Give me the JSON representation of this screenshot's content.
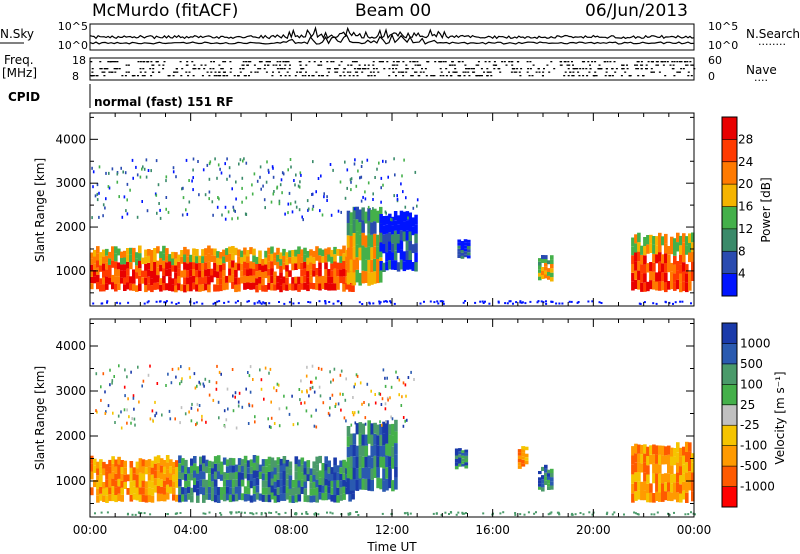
{
  "header": {
    "station": "McMurdo (fitACF)",
    "beam": "Beam 00",
    "date": "06/Jun/2013"
  },
  "noise_panel": {
    "left_label": "N.Sky",
    "right_label": "N.Search",
    "right_dots": "········",
    "left_top_tick": "10^5",
    "left_bottom_tick": "10^0",
    "right_top_tick": "10^5",
    "right_bottom_tick": "10^0"
  },
  "freq_panel": {
    "left_label_line1": "Freq.",
    "left_label_line2": "[MHz]",
    "right_label": "Nave",
    "right_dots": "····",
    "left_ticks": [
      "18",
      "8"
    ],
    "right_ticks": [
      "60",
      "0"
    ]
  },
  "cpid": {
    "label": "CPID",
    "text": "normal (fast) 151 RF"
  },
  "colors": {
    "power_scale": [
      "#0014ff",
      "#2a4bb0",
      "#3a8a6a",
      "#44b04a",
      "#f5b400",
      "#ff7a00",
      "#ff3a00",
      "#e80000"
    ],
    "velocity_scale": [
      "#ff0000",
      "#ff5a00",
      "#ff9a00",
      "#f5c400",
      "#c0c0c0",
      "#44b04a",
      "#4a9a6a",
      "#2a5ab0",
      "#1a3aaa"
    ]
  },
  "chart_data": [
    {
      "type": "heatmap",
      "name": "power",
      "ylabel": "Slant Range [km]",
      "xlabel": "",
      "x_ticks": [
        "00:00",
        "04:00",
        "08:00",
        "12:00",
        "16:00",
        "20:00",
        "00:00"
      ],
      "y_ticks": [
        "1000",
        "2000",
        "3000",
        "4000"
      ],
      "ylim": [
        200,
        4600
      ],
      "xlim_hours": [
        0,
        24
      ],
      "colorbar": {
        "label": "Power [dB]",
        "ticks": [
          "4",
          "8",
          "12",
          "16",
          "20",
          "24",
          "28"
        ]
      },
      "regions": [
        {
          "t0": 0.0,
          "t1": 10.5,
          "r0": 550,
          "r1": 1500,
          "level": "high"
        },
        {
          "t0": 10.2,
          "t1": 11.6,
          "r0": 700,
          "r1": 2400,
          "level": "mid"
        },
        {
          "t0": 11.5,
          "t1": 13.0,
          "r0": 1000,
          "r1": 2300,
          "level": "low"
        },
        {
          "t0": 14.6,
          "t1": 15.1,
          "r0": 1300,
          "r1": 1700,
          "level": "low"
        },
        {
          "t0": 17.8,
          "t1": 18.4,
          "r0": 800,
          "r1": 1300,
          "level": "mid"
        },
        {
          "t0": 21.5,
          "t1": 24.0,
          "r0": 550,
          "r1": 1800,
          "level": "high"
        }
      ]
    },
    {
      "type": "heatmap",
      "name": "velocity",
      "ylabel": "Slant Range [km]",
      "xlabel": "Time UT",
      "x_ticks": [
        "00:00",
        "04:00",
        "08:00",
        "12:00",
        "16:00",
        "20:00",
        "00:00"
      ],
      "y_ticks": [
        "1000",
        "2000",
        "3000",
        "4000"
      ],
      "ylim": [
        200,
        4600
      ],
      "xlim_hours": [
        0,
        24
      ],
      "colorbar": {
        "label": "Velocity [m s⁻¹]",
        "ticks": [
          "1000",
          "500",
          "100",
          "25",
          "-25",
          "-100",
          "-500",
          "-1000"
        ]
      },
      "regions": [
        {
          "t0": 0.0,
          "t1": 3.5,
          "r0": 550,
          "r1": 1500,
          "level": "neg"
        },
        {
          "t0": 3.5,
          "t1": 10.5,
          "r0": 550,
          "r1": 1500,
          "level": "pos"
        },
        {
          "t0": 10.2,
          "t1": 12.2,
          "r0": 800,
          "r1": 2300,
          "level": "pos"
        },
        {
          "t0": 14.5,
          "t1": 15.0,
          "r0": 1300,
          "r1": 1700,
          "level": "pos"
        },
        {
          "t0": 17.0,
          "t1": 17.4,
          "r0": 1300,
          "r1": 1700,
          "level": "neg"
        },
        {
          "t0": 17.8,
          "t1": 18.4,
          "r0": 800,
          "r1": 1300,
          "level": "pos"
        },
        {
          "t0": 21.5,
          "t1": 24.0,
          "r0": 550,
          "r1": 1800,
          "level": "neg"
        }
      ]
    }
  ]
}
